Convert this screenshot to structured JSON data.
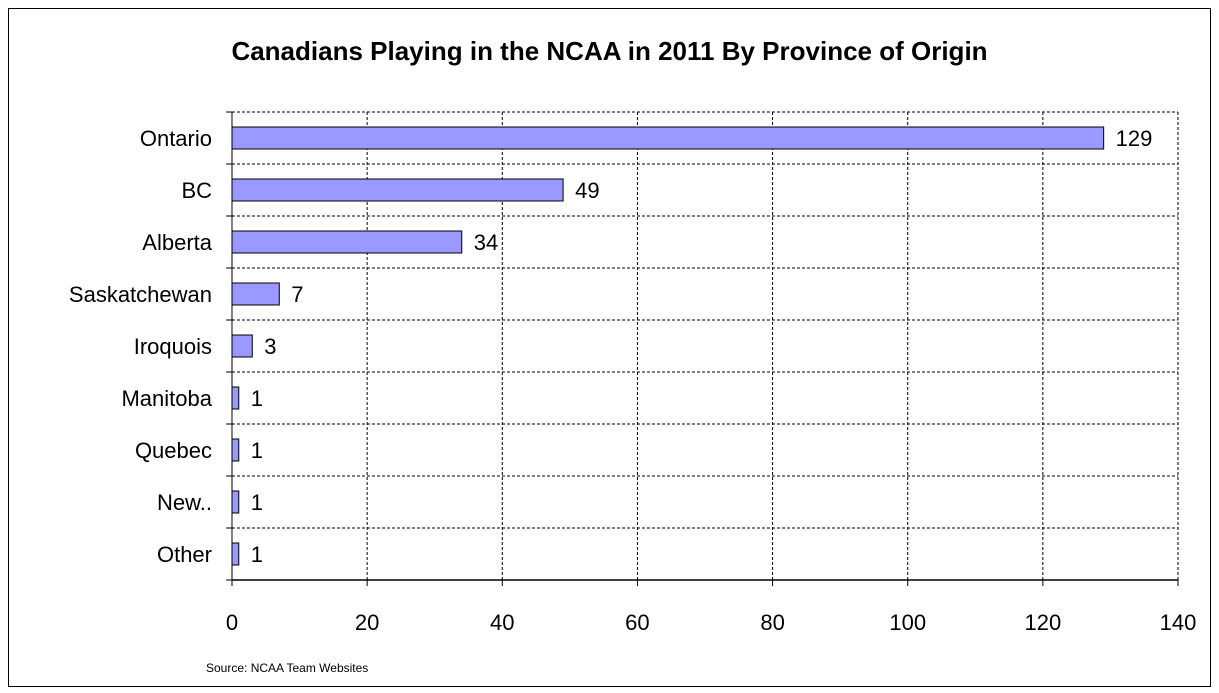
{
  "chart_data": {
    "type": "bar",
    "orientation": "horizontal",
    "title": "Canadians Playing in the NCAA in 2011 By Province of Origin",
    "categories": [
      "Ontario",
      "BC",
      "Alberta",
      "Saskatchewan",
      "Iroquois",
      "Manitoba",
      "Quebec",
      "New..",
      "Other"
    ],
    "values": [
      129,
      49,
      34,
      7,
      3,
      1,
      1,
      1,
      1
    ],
    "xlim": [
      0,
      140
    ],
    "xticks": [
      0,
      20,
      40,
      60,
      80,
      100,
      120,
      140
    ],
    "grid": true,
    "grid_style": "dashed",
    "legend": "none",
    "bar_color": "#9999ff",
    "source": "Source: NCAA Team Websites"
  }
}
